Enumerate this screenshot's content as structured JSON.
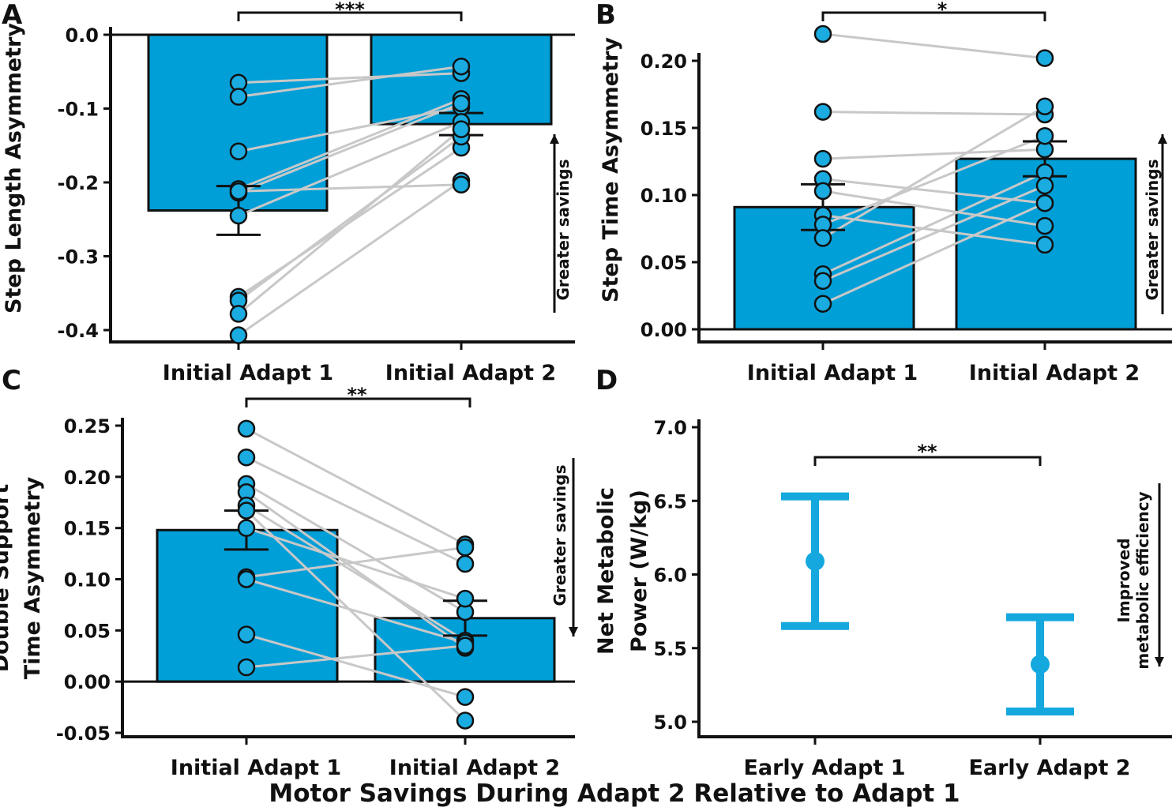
{
  "figure": {
    "xlabel": "Motor Savings During Adapt 2 Relative to Adapt 1"
  },
  "colors": {
    "bar": "#009fd8",
    "point": "#1aabe0",
    "line": "#c8c8c8",
    "errorbar_d": "#14a8de",
    "ink": "#111111"
  },
  "chart_data": [
    {
      "panel": "A",
      "type": "bar",
      "ylabel": "Step Length Asymmetry",
      "categories": [
        "Initial Adapt 1",
        "Initial Adapt 2"
      ],
      "values": [
        -0.238,
        -0.121
      ],
      "errors": [
        0.033,
        0.015
      ],
      "ylim": [
        -0.43,
        0.0
      ],
      "yticks": [
        0.0,
        -0.1,
        -0.2,
        -0.3,
        -0.4
      ],
      "ytick_labels": [
        "0.0",
        "-0.1",
        "-0.2",
        "-0.3",
        "-0.4"
      ],
      "baseline": 0.0,
      "paired_points": [
        [
          -0.065,
          -0.052
        ],
        [
          -0.084,
          -0.043
        ],
        [
          -0.158,
          -0.098
        ],
        [
          -0.209,
          -0.087
        ],
        [
          -0.214,
          -0.093
        ],
        [
          -0.245,
          -0.118
        ],
        [
          -0.355,
          -0.153
        ],
        [
          -0.36,
          -0.138
        ],
        [
          -0.378,
          -0.128
        ],
        [
          -0.407,
          -0.198
        ],
        [
          -0.212,
          -0.203
        ]
      ],
      "significance": "***",
      "annotation": "Greater savings",
      "annotation_direction": "up"
    },
    {
      "panel": "B",
      "type": "bar",
      "ylabel": "Step Time Asymmetry",
      "categories": [
        "Initial Adapt 1",
        "Initial Adapt 2"
      ],
      "values": [
        0.091,
        0.127
      ],
      "errors": [
        0.017,
        0.013
      ],
      "ylim": [
        -0.01,
        0.23
      ],
      "yticks": [
        0.0,
        0.05,
        0.1,
        0.15,
        0.2
      ],
      "ytick_labels": [
        "0.00",
        "0.05",
        "0.10",
        "0.15",
        "0.20"
      ],
      "baseline": 0.0,
      "paired_points": [
        [
          0.22,
          0.202
        ],
        [
          0.162,
          0.16
        ],
        [
          0.127,
          0.134
        ],
        [
          0.112,
          0.094
        ],
        [
          0.103,
          0.077
        ],
        [
          0.085,
          0.063
        ],
        [
          0.078,
          0.144
        ],
        [
          0.068,
          0.166
        ],
        [
          0.041,
          0.117
        ],
        [
          0.036,
          0.107
        ],
        [
          0.019,
          0.094
        ]
      ],
      "significance": "*",
      "annotation": "Greater savings",
      "annotation_direction": "up"
    },
    {
      "panel": "C",
      "type": "bar",
      "ylabel": "Double Support Time Asymmetry",
      "ylabel_lines": [
        "Double Support",
        "Time Asymmetry"
      ],
      "categories": [
        "Initial Adapt 1",
        "Initial Adapt 2"
      ],
      "values": [
        0.148,
        0.062
      ],
      "errors": [
        0.019,
        0.017
      ],
      "ylim": [
        -0.055,
        0.26
      ],
      "yticks": [
        0.25,
        0.2,
        0.15,
        0.1,
        0.05,
        0.0,
        -0.05
      ],
      "ytick_labels": [
        "0.25",
        "0.20",
        "0.15",
        "0.10",
        "0.05",
        "0.00",
        "-0.05"
      ],
      "baseline": 0.0,
      "paired_points": [
        [
          0.247,
          0.134
        ],
        [
          0.219,
          0.115
        ],
        [
          0.193,
          0.068
        ],
        [
          0.185,
          0.033
        ],
        [
          0.172,
          0.04
        ],
        [
          0.167,
          -0.038
        ],
        [
          0.15,
          0.081
        ],
        [
          0.102,
          0.131
        ],
        [
          0.1,
          0.038
        ],
        [
          0.046,
          -0.015
        ],
        [
          0.014,
          0.035
        ]
      ],
      "significance": "**",
      "annotation": "Greater savings",
      "annotation_direction": "down"
    },
    {
      "panel": "D",
      "type": "scatter",
      "ylabel": "Net Metabolic Power (W/kg)",
      "ylabel_lines": [
        "Net Metabolic",
        "Power (W/kg)"
      ],
      "categories": [
        "Early Adapt 1",
        "Early Adapt 2"
      ],
      "means": [
        6.09,
        5.39
      ],
      "lower": [
        5.65,
        5.07
      ],
      "upper": [
        6.53,
        5.71
      ],
      "ylim": [
        4.95,
        7.0
      ],
      "yticks": [
        7.0,
        6.5,
        6.0,
        5.5,
        5.0
      ],
      "ytick_labels": [
        "7.0",
        "6.5",
        "6.0",
        "5.5",
        "5.0"
      ],
      "significance": "**",
      "annotation_lines": [
        "Improved",
        "metabolic efficiency"
      ],
      "annotation_direction": "down"
    }
  ]
}
